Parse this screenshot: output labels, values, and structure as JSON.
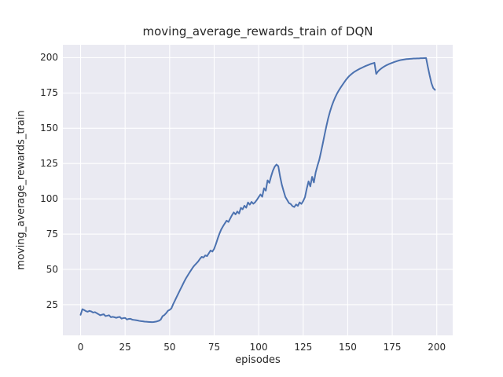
{
  "chart_data": {
    "type": "line",
    "title": "moving_average_rewards_train of DQN",
    "xlabel": "episodes",
    "ylabel": "moving_average_rewards_train",
    "x_ticks": [
      0,
      25,
      50,
      75,
      100,
      125,
      150,
      175,
      200
    ],
    "y_ticks": [
      25,
      50,
      75,
      100,
      125,
      150,
      175,
      200
    ],
    "x_start": 0,
    "x_step": 1,
    "x_range_shown": [
      0,
      199
    ],
    "margin_fraction": 0.05,
    "grid": true,
    "legend": "none",
    "series_name": "moving_average_rewards_train",
    "values": [
      17.8,
      21.8,
      21.2,
      20.4,
      20.0,
      20.6,
      20.2,
      19.4,
      19.7,
      19.0,
      18.3,
      17.5,
      17.9,
      18.2,
      16.9,
      17.2,
      17.5,
      16.1,
      16.4,
      16.1,
      15.7,
      16.1,
      16.3,
      15.1,
      15.5,
      15.6,
      14.5,
      14.9,
      15.0,
      14.4,
      14.2,
      14.0,
      13.8,
      13.5,
      13.3,
      13.2,
      13.0,
      12.9,
      12.8,
      12.7,
      12.6,
      12.7,
      12.9,
      13.2,
      13.6,
      14.4,
      16.8,
      17.6,
      18.9,
      20.6,
      21.3,
      22.4,
      25.4,
      28.0,
      30.6,
      33.2,
      35.8,
      38.3,
      40.9,
      43.3,
      45.4,
      47.4,
      49.4,
      51.3,
      52.9,
      54.2,
      55.6,
      57.4,
      58.9,
      58.4,
      59.9,
      59.4,
      61.4,
      63.4,
      62.6,
      64.6,
      68.0,
      71.9,
      75.4,
      78.4,
      80.6,
      82.6,
      84.5,
      83.6,
      86.0,
      88.4,
      90.4,
      89.0,
      91.0,
      89.6,
      93.6,
      92.6,
      95.1,
      93.7,
      97.4,
      95.9,
      97.8,
      96.5,
      97.6,
      99.3,
      101.2,
      103.1,
      101.5,
      107.5,
      105.8,
      113.1,
      111.3,
      116.0,
      120.0,
      122.8,
      124.3,
      123.2,
      116.0,
      110.0,
      105.5,
      101.3,
      99.2,
      97.0,
      96.3,
      94.8,
      94.2,
      96.0,
      95.0,
      97.5,
      96.4,
      98.4,
      101.2,
      107.2,
      112.4,
      108.8,
      115.6,
      111.6,
      118.7,
      123.4,
      127.5,
      133.2,
      139.1,
      145.4,
      151.4,
      156.9,
      161.6,
      165.6,
      169.0,
      172.0,
      174.6,
      176.8,
      178.8,
      180.7,
      182.5,
      184.3,
      185.8,
      187.2,
      188.3,
      189.3,
      190.2,
      190.9,
      191.6,
      192.3,
      192.9,
      193.5,
      194.1,
      194.6,
      195.1,
      195.6,
      196.0,
      196.4,
      188.5,
      190.3,
      191.5,
      192.5,
      193.4,
      194.1,
      194.8,
      195.4,
      195.9,
      196.4,
      196.9,
      197.3,
      197.7,
      198.1,
      198.4,
      198.6,
      198.8,
      199.0,
      199.1,
      199.2,
      199.3,
      199.4,
      199.4,
      199.5,
      199.5,
      199.6,
      199.6,
      199.7,
      199.8,
      193.5,
      187.5,
      182.0,
      178.5,
      177.2
    ],
    "colors": {
      "line": "#4C72B0",
      "plot_background": "#EAEAF2",
      "grid": "#FFFFFF",
      "text": "#262626",
      "figure_background": "#FFFFFF"
    }
  }
}
